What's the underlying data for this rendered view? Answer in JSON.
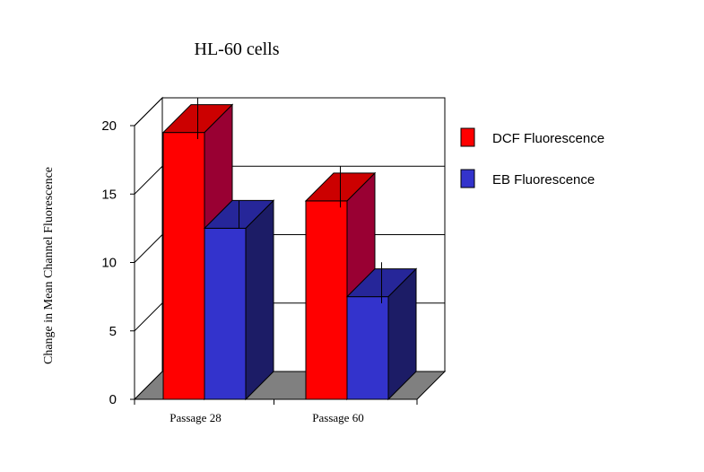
{
  "chart_data": {
    "type": "bar",
    "title": "HL-60 cells",
    "ylabel": "Change in Mean Channel Fluorescence",
    "xlabel": "",
    "categories": [
      "Passage 28",
      "Passage 60"
    ],
    "yticks": [
      "0",
      "5",
      "10",
      "15",
      "20"
    ],
    "ylim": [
      0,
      20
    ],
    "grid": true,
    "legend_position": "right",
    "series": [
      {
        "name": "DCF Fluorescence",
        "values": [
          19.5,
          14.5
        ],
        "error": [
          1.5,
          1.5
        ],
        "color": "#ff0000",
        "side_color": "#990033"
      },
      {
        "name": "EB Fluorescence",
        "values": [
          12.5,
          7.5
        ],
        "error": [
          1.0,
          1.5
        ],
        "color": "#3333cc",
        "side_color": "#1c1c66"
      }
    ],
    "floor_color": "#808080"
  }
}
